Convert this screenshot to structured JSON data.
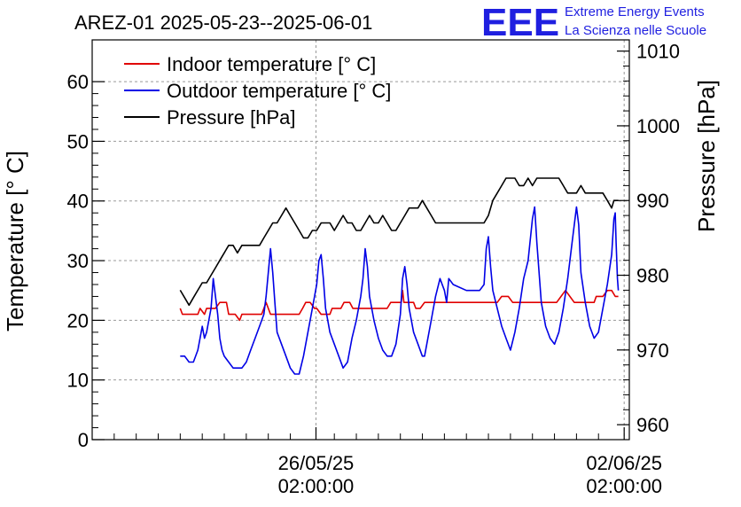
{
  "title": "AREZ-01 2025-05-23--2025-06-01",
  "logo": {
    "mark": "EEE",
    "line1": "Extreme Energy Events",
    "line2": "La Scienza nelle Scuole"
  },
  "chart_data": {
    "type": "line",
    "title": "AREZ-01 2025-05-23--2025-06-01",
    "x_unit": "days since 2025-05-23 00:00",
    "x_range": [
      -2.0,
      10.2
    ],
    "x_ticks": [
      {
        "x": 3.083,
        "label_date": "26/05/25",
        "label_time": "02:00:00"
      },
      {
        "x": 10.083,
        "label_date": "02/06/25",
        "label_time": "02:00:00"
      }
    ],
    "ylabel_left": "Temperature [° C]",
    "ylabel_right": "Pressure [hPa]",
    "ylim_left": [
      0,
      67
    ],
    "ylim_right": [
      958,
      1011.5
    ],
    "yticks_left": [
      0,
      10,
      20,
      30,
      40,
      50,
      60
    ],
    "yticks_right": [
      960,
      970,
      980,
      990,
      1000,
      1010
    ],
    "grid": true,
    "legend_position": "top-left",
    "series": [
      {
        "name": "Indoor temperature [° C]",
        "axis": "left",
        "color": "#e00000",
        "points": [
          [
            0.0,
            22
          ],
          [
            0.05,
            21
          ],
          [
            0.4,
            21
          ],
          [
            0.45,
            22
          ],
          [
            0.55,
            21
          ],
          [
            0.6,
            22
          ],
          [
            0.8,
            22
          ],
          [
            0.9,
            23
          ],
          [
            1.05,
            23
          ],
          [
            1.1,
            21
          ],
          [
            1.25,
            21
          ],
          [
            1.35,
            20
          ],
          [
            1.4,
            21
          ],
          [
            1.85,
            21
          ],
          [
            1.95,
            23
          ],
          [
            2.05,
            21
          ],
          [
            2.7,
            21
          ],
          [
            2.78,
            22
          ],
          [
            2.85,
            23
          ],
          [
            2.95,
            23
          ],
          [
            3.05,
            22
          ],
          [
            3.1,
            22
          ],
          [
            3.2,
            21
          ],
          [
            3.4,
            21
          ],
          [
            3.45,
            22
          ],
          [
            3.65,
            22
          ],
          [
            3.72,
            23
          ],
          [
            3.85,
            23
          ],
          [
            3.92,
            22
          ],
          [
            4.7,
            22
          ],
          [
            4.78,
            23
          ],
          [
            5.02,
            23
          ],
          [
            5.05,
            25
          ],
          [
            5.08,
            23
          ],
          [
            5.3,
            23
          ],
          [
            5.35,
            22
          ],
          [
            5.45,
            22
          ],
          [
            5.55,
            23
          ],
          [
            7.2,
            23
          ],
          [
            7.3,
            24
          ],
          [
            7.45,
            24
          ],
          [
            7.55,
            23
          ],
          [
            8.55,
            23
          ],
          [
            8.65,
            24
          ],
          [
            8.75,
            25
          ],
          [
            8.85,
            24
          ],
          [
            8.95,
            23
          ],
          [
            9.4,
            23
          ],
          [
            9.45,
            24
          ],
          [
            9.6,
            24
          ],
          [
            9.7,
            25
          ],
          [
            9.8,
            25
          ],
          [
            9.88,
            24
          ],
          [
            9.95,
            24
          ]
        ]
      },
      {
        "name": "Outdoor temperature [° C]",
        "axis": "left",
        "color": "#0000e6",
        "points": [
          [
            0.0,
            14
          ],
          [
            0.1,
            14
          ],
          [
            0.2,
            13
          ],
          [
            0.3,
            13
          ],
          [
            0.4,
            15
          ],
          [
            0.45,
            17
          ],
          [
            0.5,
            19
          ],
          [
            0.55,
            17
          ],
          [
            0.6,
            18
          ],
          [
            0.65,
            20
          ],
          [
            0.7,
            22
          ],
          [
            0.75,
            27
          ],
          [
            0.8,
            24
          ],
          [
            0.85,
            21
          ],
          [
            0.9,
            17
          ],
          [
            0.95,
            15
          ],
          [
            1.0,
            14
          ],
          [
            1.1,
            13
          ],
          [
            1.2,
            12
          ],
          [
            1.4,
            12
          ],
          [
            1.5,
            13
          ],
          [
            1.6,
            15
          ],
          [
            1.7,
            17
          ],
          [
            1.8,
            19
          ],
          [
            1.9,
            21
          ],
          [
            1.95,
            24
          ],
          [
            2.0,
            28
          ],
          [
            2.05,
            32
          ],
          [
            2.1,
            28
          ],
          [
            2.15,
            23
          ],
          [
            2.2,
            18
          ],
          [
            2.3,
            16
          ],
          [
            2.4,
            14
          ],
          [
            2.5,
            12
          ],
          [
            2.6,
            11
          ],
          [
            2.7,
            11
          ],
          [
            2.8,
            14
          ],
          [
            2.9,
            18
          ],
          [
            3.0,
            22
          ],
          [
            3.1,
            26
          ],
          [
            3.15,
            30
          ],
          [
            3.2,
            31
          ],
          [
            3.25,
            27
          ],
          [
            3.3,
            22
          ],
          [
            3.4,
            18
          ],
          [
            3.5,
            16
          ],
          [
            3.6,
            14
          ],
          [
            3.7,
            12
          ],
          [
            3.8,
            13
          ],
          [
            3.9,
            17
          ],
          [
            4.0,
            20
          ],
          [
            4.1,
            24
          ],
          [
            4.15,
            27
          ],
          [
            4.2,
            32
          ],
          [
            4.25,
            29
          ],
          [
            4.3,
            24
          ],
          [
            4.4,
            20
          ],
          [
            4.5,
            17
          ],
          [
            4.6,
            15
          ],
          [
            4.7,
            14
          ],
          [
            4.8,
            14
          ],
          [
            4.9,
            16
          ],
          [
            5.0,
            21
          ],
          [
            5.05,
            27
          ],
          [
            5.1,
            29
          ],
          [
            5.15,
            26
          ],
          [
            5.2,
            22
          ],
          [
            5.3,
            18
          ],
          [
            5.4,
            16
          ],
          [
            5.5,
            14
          ],
          [
            5.55,
            14
          ],
          [
            5.6,
            16
          ],
          [
            5.7,
            20
          ],
          [
            5.8,
            24
          ],
          [
            5.9,
            27
          ],
          [
            6.0,
            25
          ],
          [
            6.05,
            23
          ],
          [
            6.1,
            27
          ],
          [
            6.2,
            26
          ],
          [
            6.5,
            25
          ],
          [
            6.8,
            25
          ],
          [
            6.9,
            26
          ],
          [
            6.95,
            32
          ],
          [
            7.0,
            34
          ],
          [
            7.05,
            29
          ],
          [
            7.1,
            25
          ],
          [
            7.2,
            22
          ],
          [
            7.3,
            19
          ],
          [
            7.4,
            17
          ],
          [
            7.5,
            15
          ],
          [
            7.6,
            18
          ],
          [
            7.7,
            22
          ],
          [
            7.8,
            27
          ],
          [
            7.9,
            30
          ],
          [
            8.0,
            37
          ],
          [
            8.05,
            39
          ],
          [
            8.1,
            33
          ],
          [
            8.2,
            23
          ],
          [
            8.3,
            19
          ],
          [
            8.4,
            17
          ],
          [
            8.5,
            16
          ],
          [
            8.6,
            18
          ],
          [
            8.7,
            22
          ],
          [
            8.8,
            27
          ],
          [
            8.9,
            33
          ],
          [
            9.0,
            39
          ],
          [
            9.05,
            36
          ],
          [
            9.1,
            28
          ],
          [
            9.2,
            23
          ],
          [
            9.3,
            19
          ],
          [
            9.4,
            17
          ],
          [
            9.5,
            18
          ],
          [
            9.6,
            22
          ],
          [
            9.7,
            26
          ],
          [
            9.8,
            31
          ],
          [
            9.85,
            37
          ],
          [
            9.88,
            38
          ],
          [
            9.9,
            33
          ],
          [
            9.93,
            27
          ],
          [
            9.95,
            25
          ]
        ]
      },
      {
        "name": "Pressure [hPa]",
        "axis": "right",
        "color": "#000000",
        "points": [
          [
            0.0,
            978
          ],
          [
            0.1,
            977
          ],
          [
            0.2,
            976
          ],
          [
            0.3,
            977
          ],
          [
            0.4,
            978
          ],
          [
            0.5,
            979
          ],
          [
            0.6,
            979
          ],
          [
            0.7,
            980
          ],
          [
            0.8,
            981
          ],
          [
            0.9,
            982
          ],
          [
            1.0,
            983
          ],
          [
            1.1,
            984
          ],
          [
            1.2,
            984
          ],
          [
            1.3,
            983
          ],
          [
            1.4,
            984
          ],
          [
            1.5,
            984
          ],
          [
            1.6,
            984
          ],
          [
            1.7,
            984
          ],
          [
            1.8,
            984
          ],
          [
            1.9,
            985
          ],
          [
            2.0,
            986
          ],
          [
            2.1,
            987
          ],
          [
            2.2,
            987
          ],
          [
            2.3,
            988
          ],
          [
            2.4,
            989
          ],
          [
            2.5,
            988
          ],
          [
            2.6,
            987
          ],
          [
            2.7,
            986
          ],
          [
            2.8,
            985
          ],
          [
            2.9,
            985
          ],
          [
            3.0,
            986
          ],
          [
            3.1,
            986
          ],
          [
            3.2,
            987
          ],
          [
            3.3,
            987
          ],
          [
            3.4,
            987
          ],
          [
            3.5,
            986
          ],
          [
            3.6,
            987
          ],
          [
            3.7,
            988
          ],
          [
            3.8,
            987
          ],
          [
            3.9,
            987
          ],
          [
            4.0,
            986
          ],
          [
            4.1,
            986
          ],
          [
            4.2,
            987
          ],
          [
            4.3,
            988
          ],
          [
            4.4,
            987
          ],
          [
            4.5,
            987
          ],
          [
            4.6,
            988
          ],
          [
            4.7,
            987
          ],
          [
            4.8,
            986
          ],
          [
            4.9,
            986
          ],
          [
            5.0,
            987
          ],
          [
            5.1,
            988
          ],
          [
            5.2,
            989
          ],
          [
            5.3,
            989
          ],
          [
            5.4,
            989
          ],
          [
            5.5,
            990
          ],
          [
            5.6,
            989
          ],
          [
            5.7,
            988
          ],
          [
            5.8,
            987
          ],
          [
            6.0,
            987
          ],
          [
            6.5,
            987
          ],
          [
            6.9,
            987
          ],
          [
            7.0,
            988
          ],
          [
            7.1,
            990
          ],
          [
            7.2,
            991
          ],
          [
            7.3,
            992
          ],
          [
            7.4,
            993
          ],
          [
            7.5,
            993
          ],
          [
            7.6,
            993
          ],
          [
            7.7,
            992
          ],
          [
            7.8,
            992
          ],
          [
            7.9,
            993
          ],
          [
            8.0,
            992
          ],
          [
            8.1,
            993
          ],
          [
            8.2,
            993
          ],
          [
            8.4,
            993
          ],
          [
            8.6,
            993
          ],
          [
            8.7,
            992
          ],
          [
            8.8,
            991
          ],
          [
            8.9,
            991
          ],
          [
            9.0,
            991
          ],
          [
            9.1,
            992
          ],
          [
            9.2,
            991
          ],
          [
            9.3,
            991
          ],
          [
            9.4,
            991
          ],
          [
            9.5,
            991
          ],
          [
            9.6,
            991
          ],
          [
            9.7,
            990
          ],
          [
            9.8,
            989
          ],
          [
            9.85,
            990
          ],
          [
            9.95,
            990
          ]
        ]
      }
    ]
  }
}
